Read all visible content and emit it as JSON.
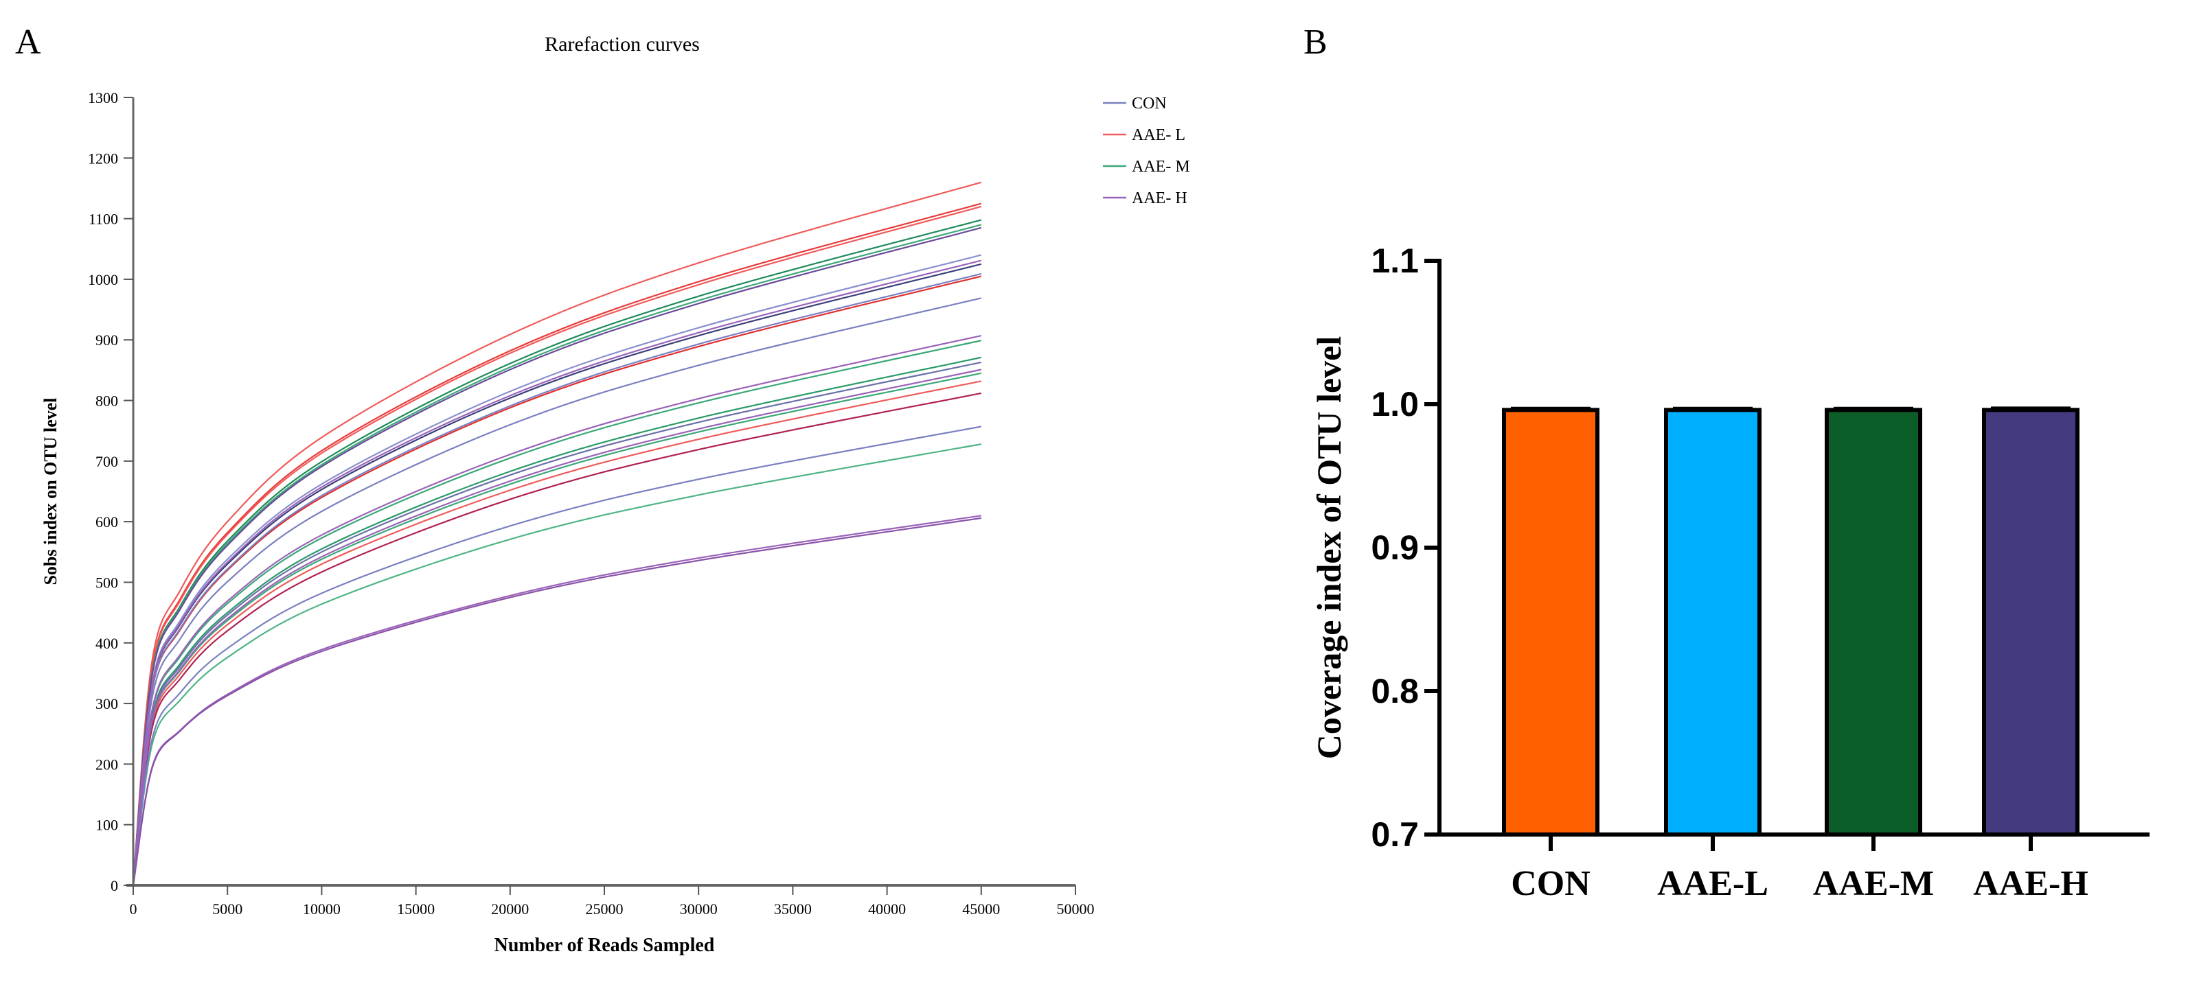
{
  "panel_a_label": "A",
  "panel_b_label": "B",
  "chart_data": [
    {
      "type": "line",
      "title": "Rarefaction curves",
      "xlabel": "Number of Reads Sampled",
      "ylabel": "Sobs index on OTU level",
      "xlim": [
        0,
        50000
      ],
      "ylim": [
        0,
        1300
      ],
      "xticks": [
        "0",
        "5000",
        "10000",
        "15000",
        "20000",
        "25000",
        "30000",
        "35000",
        "40000",
        "45000",
        "50000"
      ],
      "yticks": [
        "0",
        "100",
        "200",
        "300",
        "400",
        "500",
        "600",
        "700",
        "800",
        "900",
        "1000",
        "1100",
        "1200",
        "1300"
      ],
      "grid": false,
      "legend_position": "top-right",
      "legend": [
        {
          "name": "CON",
          "color": "#7a80c0"
        },
        {
          "name": "AAE- L",
          "color": "#f05a5a"
        },
        {
          "name": "AAE- M",
          "color": "#3aa877"
        },
        {
          "name": "AAE- H",
          "color": "#9a62b8"
        }
      ],
      "x": [
        0,
        1000,
        2500,
        5000,
        10000,
        20000,
        30000,
        45000
      ],
      "series": [
        {
          "group": "AAE- L",
          "color": "#f05a5a",
          "values": [
            0,
            370,
            487,
            600,
            739,
            909,
            1027,
            1160
          ]
        },
        {
          "group": "AAE- L",
          "color": "#e83a3a",
          "values": [
            0,
            359,
            473,
            582,
            717,
            882,
            996,
            1125
          ]
        },
        {
          "group": "AAE- L",
          "color": "#f05a5a",
          "values": [
            0,
            357,
            470,
            579,
            713,
            878,
            991,
            1120
          ]
        },
        {
          "group": "AAE- L",
          "color": "#e03030",
          "values": [
            0,
            321,
            422,
            520,
            640,
            788,
            889,
            1005
          ]
        },
        {
          "group": "AAE- L",
          "color": "#f05a5a",
          "values": [
            0,
            265,
            349,
            430,
            530,
            652,
            736,
            832
          ]
        },
        {
          "group": "AAE- L",
          "color": "#b02050",
          "values": [
            0,
            259,
            341,
            420,
            517,
            637,
            719,
            812
          ]
        },
        {
          "group": "AAE- M",
          "color": "#1f8a5a",
          "values": [
            0,
            350,
            461,
            568,
            699,
            861,
            972,
            1098
          ]
        },
        {
          "group": "AAE- M",
          "color": "#3aa877",
          "values": [
            0,
            348,
            458,
            564,
            694,
            855,
            965,
            1090
          ]
        },
        {
          "group": "AAE- M",
          "color": "#3aa877",
          "values": [
            0,
            287,
            378,
            465,
            573,
            705,
            796,
            899
          ]
        },
        {
          "group": "AAE- M",
          "color": "#2b9a68",
          "values": [
            0,
            278,
            366,
            450,
            555,
            683,
            771,
            871
          ]
        },
        {
          "group": "AAE- M",
          "color": "#3aa877",
          "values": [
            0,
            270,
            355,
            437,
            538,
            662,
            748,
            845
          ]
        },
        {
          "group": "AAE- M",
          "color": "#4fb585",
          "values": [
            0,
            232,
            306,
            376,
            464,
            571,
            644,
            728
          ]
        },
        {
          "group": "CON",
          "color": "#8a90cc",
          "values": [
            0,
            332,
            437,
            538,
            662,
            815,
            920,
            1040
          ]
        },
        {
          "group": "CON",
          "color": "#3a3f7a",
          "values": [
            0,
            327,
            431,
            530,
            653,
            804,
            907,
            1025
          ]
        },
        {
          "group": "CON",
          "color": "#7a80c0",
          "values": [
            0,
            322,
            424,
            522,
            643,
            791,
            893,
            1009
          ]
        },
        {
          "group": "CON",
          "color": "#7a80c0",
          "values": [
            0,
            309,
            407,
            501,
            617,
            760,
            858,
            969
          ]
        },
        {
          "group": "CON",
          "color": "#6a70a8",
          "values": [
            0,
            275,
            362,
            446,
            550,
            677,
            764,
            863
          ]
        },
        {
          "group": "CON",
          "color": "#7a80c0",
          "values": [
            0,
            241,
            318,
            391,
            482,
            593,
            670,
            757
          ]
        },
        {
          "group": "AAE- H",
          "color": "#6a4a9a",
          "values": [
            0,
            346,
            456,
            561,
            691,
            851,
            960,
            1085
          ]
        },
        {
          "group": "AAE- H",
          "color": "#9a62b8",
          "values": [
            0,
            329,
            433,
            533,
            657,
            808,
            912,
            1031
          ]
        },
        {
          "group": "AAE- H",
          "color": "#9a62b8",
          "values": [
            0,
            289,
            381,
            469,
            578,
            711,
            803,
            907
          ]
        },
        {
          "group": "AAE- H",
          "color": "#9a62b8",
          "values": [
            0,
            271,
            357,
            440,
            542,
            667,
            753,
            851
          ]
        },
        {
          "group": "AAE- H",
          "color": "#9a62b8",
          "values": [
            0,
            195,
            256,
            315,
            389,
            478,
            540,
            610
          ]
        },
        {
          "group": "AAE- H",
          "color": "#8a52a8",
          "values": [
            0,
            193,
            255,
            313,
            386,
            475,
            536,
            606
          ]
        }
      ]
    },
    {
      "type": "bar",
      "title": "",
      "xlabel": "",
      "ylabel": "Coverage index of OTU level",
      "ylim": [
        0.7,
        1.1
      ],
      "yticks": [
        "0.7",
        "0.8",
        "0.9",
        "1.0",
        "1.1"
      ],
      "categories": [
        "CON",
        "AAE-L",
        "AAE-M",
        "AAE-H"
      ],
      "values": [
        0.996,
        0.996,
        0.996,
        0.996
      ],
      "errors": [
        0.001,
        0.001,
        0.001,
        0.0012
      ],
      "colors": [
        "#ff6100",
        "#00b0ff",
        "#0b5e28",
        "#433a7f"
      ]
    }
  ]
}
